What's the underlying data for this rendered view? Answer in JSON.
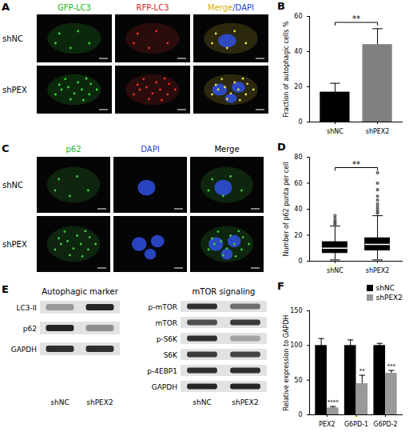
{
  "image_panels": [
    {
      "label": "A",
      "columns": [
        {
          "header": [
            {
              "text": "GFP-LC3",
              "color": "#22b822"
            }
          ],
          "puncta_color": "#33dd33"
        },
        {
          "header": [
            {
              "text": "RFP-LC3",
              "color": "#dd2222"
            }
          ],
          "puncta_color": "#ee3030"
        },
        {
          "header": [
            {
              "text": "Merge",
              "color": "#d4b000"
            },
            {
              "text": "/DAPI",
              "color": "#2040d0"
            }
          ],
          "puncta_color": "#f0e040",
          "nuclei_color": "#3050e0"
        }
      ],
      "rows": [
        "shNC",
        "shPEX"
      ]
    },
    {
      "label": "C",
      "columns": [
        {
          "header": [
            {
              "text": "p62",
              "color": "#22b822"
            }
          ],
          "puncta_color": "#40d040"
        },
        {
          "header": [
            {
              "text": "DAPI",
              "color": "#2040d0"
            }
          ],
          "nuclei_color": "#3050e0"
        },
        {
          "header": [
            {
              "text": "Merge",
              "color": "#000000"
            }
          ],
          "puncta_color": "#40d040",
          "nuclei_color": "#3050e0"
        }
      ],
      "rows": [
        "shNC",
        "shPEX"
      ]
    }
  ],
  "blot_panel": {
    "label": "E",
    "blots": [
      {
        "title": "Autophagic marker",
        "lanes": [
          "shNC",
          "shPEX2"
        ],
        "rows": [
          {
            "name": "LC3-II",
            "intensity": [
              0.35,
              0.9
            ]
          },
          {
            "name": "p62",
            "intensity": [
              0.9,
              0.4
            ]
          },
          {
            "name": "GAPDH",
            "intensity": [
              0.85,
              0.85
            ]
          }
        ]
      },
      {
        "title": "mTOR signaling",
        "lanes": [
          "shNC",
          "shPEX2"
        ],
        "rows": [
          {
            "name": "p-mTOR",
            "intensity": [
              0.85,
              0.55
            ]
          },
          {
            "name": "mTOR",
            "intensity": [
              0.7,
              0.8
            ]
          },
          {
            "name": "p-S6K",
            "intensity": [
              0.85,
              0.3
            ]
          },
          {
            "name": "S6K",
            "intensity": [
              0.8,
              0.75
            ]
          },
          {
            "name": "p-4EBP1",
            "intensity": [
              0.85,
              0.85
            ]
          },
          {
            "name": "GAPDH",
            "intensity": [
              0.9,
              0.9
            ]
          }
        ]
      }
    ]
  },
  "chart_data": [
    {
      "panel": "B",
      "type": "bar",
      "categories": [
        "shNC",
        "shPEX2"
      ],
      "values": [
        17,
        44
      ],
      "errors": [
        5,
        9
      ],
      "colors": [
        "#000000",
        "#808080"
      ],
      "ylabel": "Fraction of autophagic cells %",
      "ylim": [
        0,
        60
      ],
      "yticks": [
        0,
        20,
        40,
        60
      ],
      "annotations": "**"
    },
    {
      "panel": "D",
      "type": "box",
      "categories": [
        "shNC",
        "shPEX2"
      ],
      "boxes": [
        {
          "min": 1,
          "q1": 6,
          "median": 10,
          "q3": 15,
          "max": 27,
          "outliers": [
            28,
            29,
            30,
            31,
            33,
            35
          ]
        },
        {
          "min": 1,
          "q1": 8,
          "median": 13,
          "q3": 18,
          "max": 35,
          "outliers": [
            37,
            38,
            40,
            42,
            44,
            47,
            50,
            55,
            60,
            68
          ]
        }
      ],
      "color": "#000000",
      "ylabel": "Number of p62 punta per cell",
      "ylim": [
        0,
        80
      ],
      "yticks": [
        0,
        20,
        40,
        60,
        80
      ],
      "annotations": "**"
    },
    {
      "panel": "F",
      "type": "bar",
      "categories": [
        "PEX2",
        "G6PD-1",
        "G6PD-2"
      ],
      "series": [
        {
          "name": "shNC",
          "color": "#000000",
          "values": [
            100,
            100,
            100
          ],
          "errors": [
            10,
            8,
            3
          ]
        },
        {
          "name": "shPEX2",
          "color": "#999999",
          "values": [
            10,
            45,
            60
          ],
          "errors": [
            2,
            12,
            4
          ],
          "annotations": [
            "****",
            "**",
            "***"
          ]
        }
      ],
      "ylabel": "Relative expression to GAPDH",
      "ylim": [
        0,
        150
      ],
      "yticks": [
        0,
        50,
        100,
        150
      ],
      "legend": "top-right"
    }
  ]
}
